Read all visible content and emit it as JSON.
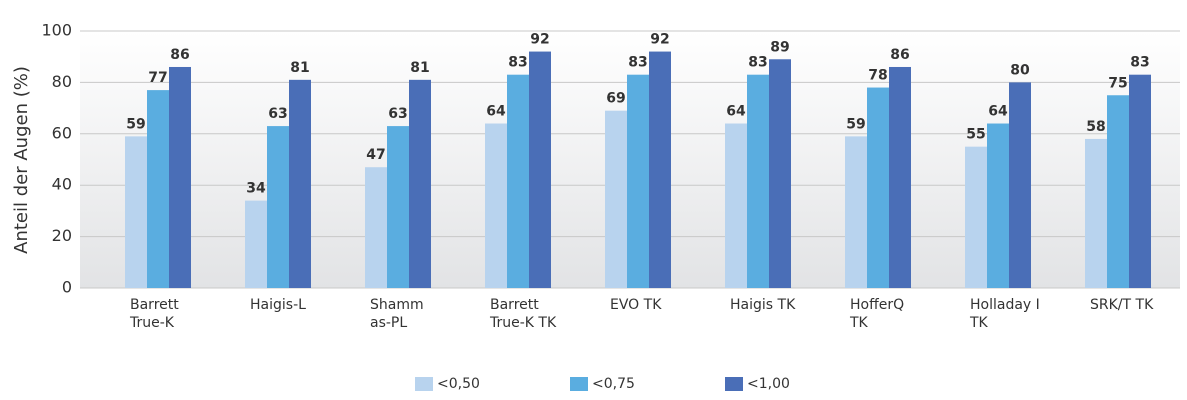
{
  "chart_data": {
    "type": "bar",
    "y_label": "Anteil der Augen (%)",
    "categories": [
      "Barrett True-K",
      "Haigis-L",
      "Shamm as-PL",
      "Barrett True-K TK",
      "EVO TK",
      "Haigis TK",
      "HofferQ TK",
      "Holladay I TK",
      "SRK/T TK"
    ],
    "series": [
      {
        "name": "<0,50",
        "color": "#b8d3ee",
        "values": [
          59,
          34,
          47,
          64,
          69,
          64,
          59,
          55,
          58
        ]
      },
      {
        "name": "<0,75",
        "color": "#5aade0",
        "values": [
          77,
          63,
          63,
          83,
          83,
          83,
          78,
          64,
          75
        ]
      },
      {
        "name": "<1,00",
        "color": "#4a6eb7",
        "values": [
          86,
          81,
          81,
          92,
          92,
          89,
          86,
          80,
          83
        ]
      }
    ],
    "ylim": [
      0,
      100
    ],
    "yticks": [
      0,
      20,
      40,
      60,
      80,
      100
    ],
    "grid": true,
    "legend": "bottom"
  }
}
